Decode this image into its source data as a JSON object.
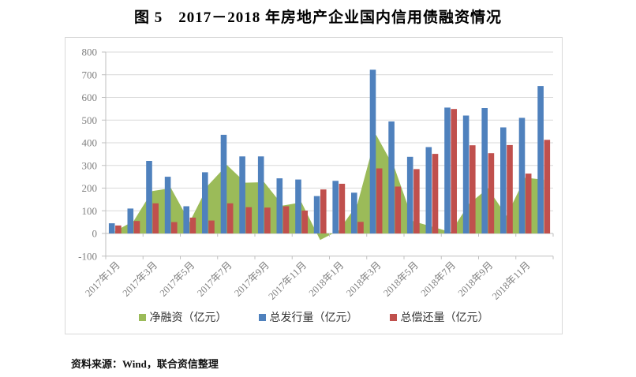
{
  "title": "图 5　2017－2018 年房地产企业国内信用债融资情况",
  "source_note": "资料来源：Wind，联合资信整理",
  "colors": {
    "net_area": "#9BBB59",
    "issuance_bar": "#4F81BD",
    "repayment_bar": "#C0504D",
    "gridline": "#D9D9D9",
    "axis_line": "#BFBFBF",
    "axis_text": "#7F7F7F",
    "title_text": "#000000"
  },
  "chart_data": {
    "type": "combo-area-bar",
    "unit": "亿元",
    "categories": [
      "2017年1月",
      "2017年2月",
      "2017年3月",
      "2017年4月",
      "2017年5月",
      "2017年6月",
      "2017年7月",
      "2017年8月",
      "2017年9月",
      "2017年10月",
      "2017年11月",
      "2017年12月",
      "2018年1月",
      "2018年2月",
      "2018年3月",
      "2018年4月",
      "2018年5月",
      "2018年6月",
      "2018年7月",
      "2018年8月",
      "2018年9月",
      "2018年10月",
      "2018年11月",
      "2018年12月"
    ],
    "x_tick_labels": [
      "2017年1月",
      "2017年3月",
      "2017年5月",
      "2017年7月",
      "2017年9月",
      "2017年11月",
      "2018年1月",
      "2018年3月",
      "2018年5月",
      "2018年7月",
      "2018年9月",
      "2018年11月"
    ],
    "series": [
      {
        "name": "净融资（亿元）",
        "type": "area",
        "color": "#9BBB59",
        "values": [
          10,
          55,
          187,
          200,
          50,
          213,
          302,
          224,
          226,
          123,
          137,
          -29,
          13,
          129,
          435,
          287,
          54,
          30,
          6,
          131,
          199,
          78,
          246,
          237
        ]
      },
      {
        "name": "总发行量（亿元）",
        "type": "bar",
        "color": "#4F81BD",
        "values": [
          45,
          110,
          320,
          250,
          120,
          270,
          435,
          340,
          340,
          243,
          238,
          165,
          232,
          180,
          722,
          494,
          338,
          381,
          555,
          520,
          553,
          468,
          510,
          650
        ]
      },
      {
        "name": "总偿还量（亿元）",
        "type": "bar",
        "color": "#C0504D",
        "values": [
          35,
          55,
          133,
          50,
          70,
          57,
          133,
          116,
          114,
          120,
          101,
          194,
          219,
          51,
          287,
          207,
          284,
          351,
          549,
          389,
          354,
          390,
          264,
          413
        ]
      }
    ],
    "ylim": [
      -100,
      800
    ],
    "y_ticks": [
      800,
      700,
      600,
      500,
      400,
      300,
      200,
      100,
      0,
      -100
    ],
    "grid": true,
    "legend_position": "bottom"
  }
}
